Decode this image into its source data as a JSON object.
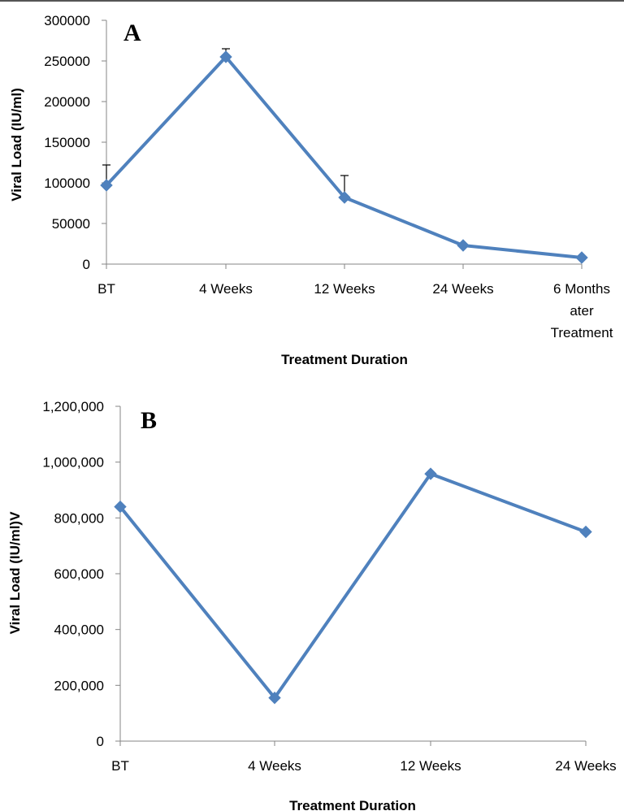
{
  "chart_data": [
    {
      "type": "line",
      "panel_label": "A",
      "categories": [
        "BT",
        "4 Weeks",
        "12 Weeks",
        "24 Weeks",
        "6 Months ater Treatment"
      ],
      "category_lines": [
        [
          "BT"
        ],
        [
          "4 Weeks"
        ],
        [
          "12 Weeks"
        ],
        [
          "24 Weeks"
        ],
        [
          "6 Months",
          "ater",
          "Treatment"
        ]
      ],
      "values": [
        97000,
        255000,
        82000,
        23000,
        8000
      ],
      "error_upper": [
        122000,
        265000,
        109000,
        null,
        null
      ],
      "xlabel": "Treatment Duration",
      "ylabel": "Viral Load (IU/ml)",
      "ylim": [
        0,
        300000
      ],
      "ytick_values": [
        0,
        50000,
        100000,
        150000,
        200000,
        250000,
        300000
      ],
      "ytick_labels": [
        "0",
        "50000",
        "100000",
        "150000",
        "200000",
        "250000",
        "300000"
      ],
      "color": "#4f81bd",
      "marker": "diamond",
      "grid": false
    },
    {
      "type": "line",
      "panel_label": "B",
      "categories": [
        "BT",
        "4 Weeks",
        "12 Weeks",
        "24 Weeks"
      ],
      "category_lines": [
        [
          "BT"
        ],
        [
          "4 Weeks"
        ],
        [
          "12 Weeks"
        ],
        [
          "24 Weeks"
        ]
      ],
      "values": [
        840000,
        155000,
        958000,
        750000
      ],
      "xlabel": "Treatment Duration",
      "ylabel": "Viral Load (IU/ml)V",
      "ylim": [
        0,
        1200000
      ],
      "ytick_values": [
        0,
        200000,
        400000,
        600000,
        800000,
        1000000,
        1200000
      ],
      "ytick_labels": [
        "0",
        "200,000",
        "400,000",
        "600,000",
        "800,000",
        "1,000,000",
        "1,200,000"
      ],
      "color": "#4f81bd",
      "marker": "diamond",
      "grid": false
    }
  ]
}
